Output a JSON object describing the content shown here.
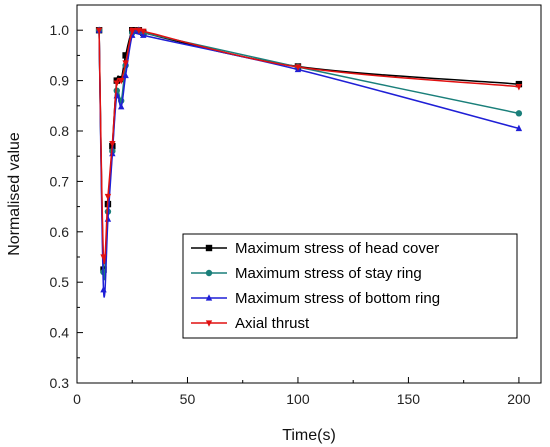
{
  "chart_data": {
    "type": "line",
    "xlabel": "Time(s)",
    "ylabel": "Normalised value",
    "xlim": [
      0,
      210
    ],
    "ylim": [
      0.3,
      1.05
    ],
    "x_ticks": [
      0,
      50,
      100,
      150,
      200
    ],
    "y_ticks": [
      0.3,
      0.4,
      0.5,
      0.6,
      0.7,
      0.8,
      0.9,
      1.0
    ],
    "x_tick_labels": [
      "0",
      "50",
      "100",
      "150",
      "200"
    ],
    "y_tick_labels": [
      "0.3",
      "0.4",
      "0.5",
      "0.6",
      "0.7",
      "0.8",
      "0.9",
      "1.0"
    ],
    "grid": false,
    "legend_position": "lower-right",
    "series": [
      {
        "name": "Maximum stress of head cover",
        "color": "#000000",
        "marker": "square",
        "points": [
          [
            10,
            1.0
          ],
          [
            12,
            0.525
          ],
          [
            14,
            0.655
          ],
          [
            16,
            0.77
          ],
          [
            18,
            0.9
          ],
          [
            20,
            0.903
          ],
          [
            22,
            0.95
          ],
          [
            25,
            1.0
          ],
          [
            28,
            1.0
          ],
          [
            30,
            0.995
          ],
          [
            100,
            0.928
          ],
          [
            200,
            0.893
          ]
        ]
      },
      {
        "name": "Maximum stress of stay ring",
        "color": "#1a7f7a",
        "marker": "circle",
        "points": [
          [
            10,
            1.0
          ],
          [
            12,
            0.52
          ],
          [
            14,
            0.64
          ],
          [
            16,
            0.76
          ],
          [
            18,
            0.88
          ],
          [
            20,
            0.86
          ],
          [
            22,
            0.93
          ],
          [
            25,
            0.995
          ],
          [
            28,
            1.0
          ],
          [
            30,
            0.995
          ],
          [
            100,
            0.927
          ],
          [
            200,
            0.835
          ]
        ]
      },
      {
        "name": "Maximum stress of bottom ring",
        "color": "#1f1fd6",
        "marker": "triangle-up",
        "points": [
          [
            10,
            1.0
          ],
          [
            12,
            0.485
          ],
          [
            14,
            0.625
          ],
          [
            16,
            0.755
          ],
          [
            18,
            0.87
          ],
          [
            20,
            0.848
          ],
          [
            22,
            0.91
          ],
          [
            25,
            0.99
          ],
          [
            28,
            1.0
          ],
          [
            30,
            0.99
          ],
          [
            100,
            0.922
          ],
          [
            200,
            0.805
          ]
        ]
      },
      {
        "name": "Axial thrust",
        "color": "#e01010",
        "marker": "triangle-down",
        "points": [
          [
            10,
            1.0
          ],
          [
            12,
            0.55
          ],
          [
            14,
            0.67
          ],
          [
            16,
            0.775
          ],
          [
            18,
            0.895
          ],
          [
            20,
            0.9
          ],
          [
            22,
            0.935
          ],
          [
            25,
            0.998
          ],
          [
            28,
            1.0
          ],
          [
            30,
            0.998
          ],
          [
            100,
            0.927
          ],
          [
            200,
            0.888
          ]
        ]
      }
    ]
  }
}
